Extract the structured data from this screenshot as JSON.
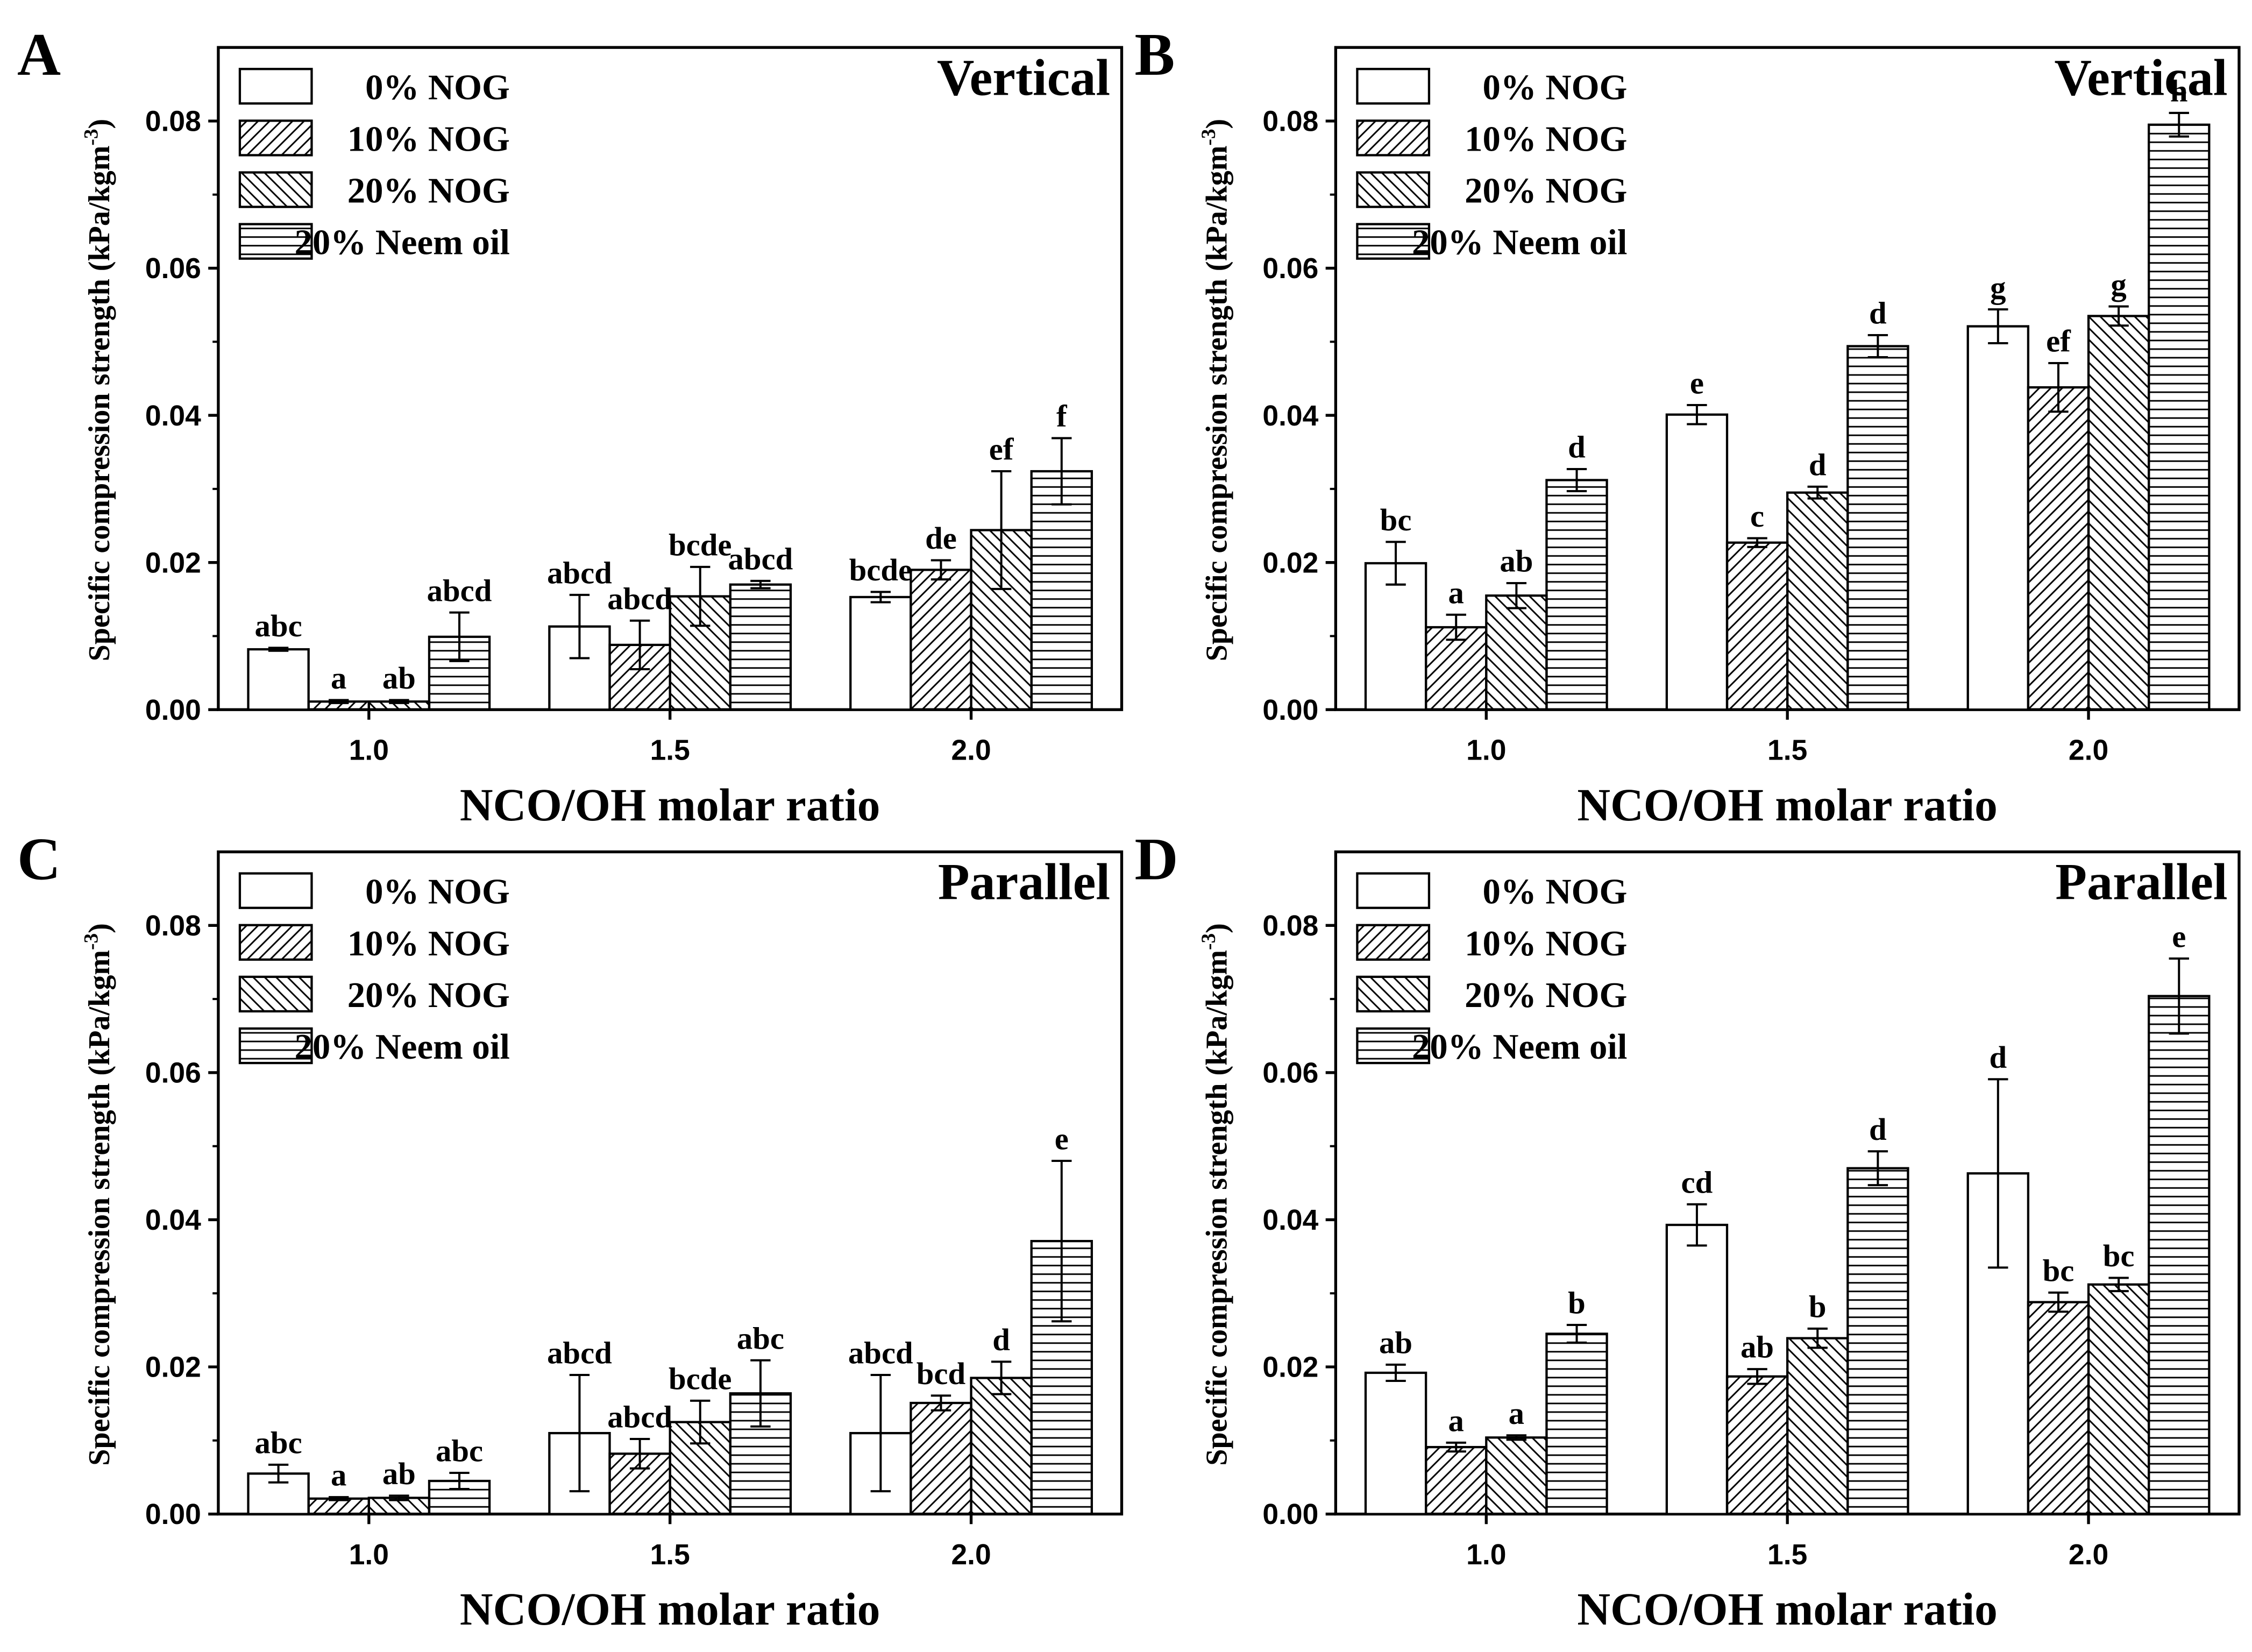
{
  "chart_data": [
    {
      "panel": "A",
      "type": "bar",
      "title": "Vertical",
      "xlabel": "NCO/OH molar ratio",
      "ylabel": "Specific compression strength (kPa/kgm",
      "ylabel_exp": "-3",
      "ylabel_close": ")",
      "ylim": [
        0,
        0.09
      ],
      "yticks": [
        "0.00",
        "0.02",
        "0.04",
        "0.06",
        "0.08"
      ],
      "categories": [
        "1.0",
        "1.5",
        "2.0"
      ],
      "series": [
        {
          "name": "0% NOG",
          "pattern": "empty",
          "values": [
            0.0082,
            0.0113,
            0.0153
          ],
          "errors": [
            0.0002,
            0.0043,
            0.0007
          ],
          "labels": [
            "abc",
            "abcd",
            "bcde"
          ]
        },
        {
          "name": "10% NOG",
          "pattern": "fdiag",
          "values": [
            0.0011,
            0.0088,
            0.019
          ],
          "errors": [
            0.0002,
            0.0033,
            0.0013
          ],
          "labels": [
            "a",
            "abcd",
            "de"
          ]
        },
        {
          "name": "20% NOG",
          "pattern": "bdiag",
          "values": [
            0.0011,
            0.0154,
            0.0244
          ],
          "errors": [
            0.0002,
            0.004,
            0.008
          ],
          "labels": [
            "ab",
            "bcde",
            "ef"
          ]
        },
        {
          "name": "20% Neem oil",
          "pattern": "hlines",
          "values": [
            0.0099,
            0.017,
            0.0324
          ],
          "errors": [
            0.0033,
            0.0005,
            0.0045
          ],
          "labels": [
            "abcd",
            "abcd",
            "f"
          ]
        }
      ]
    },
    {
      "panel": "B",
      "type": "bar",
      "title": "Vertical",
      "xlabel": "NCO/OH molar ratio",
      "ylabel": "Specific compression strength (kPa/kgm",
      "ylabel_exp": "-3",
      "ylabel_close": ")",
      "ylim": [
        0,
        0.09
      ],
      "yticks": [
        "0.00",
        "0.02",
        "0.04",
        "0.06",
        "0.08"
      ],
      "categories": [
        "1.0",
        "1.5",
        "2.0"
      ],
      "series": [
        {
          "name": "0% NOG",
          "pattern": "empty",
          "values": [
            0.0199,
            0.0401,
            0.0521
          ],
          "errors": [
            0.0029,
            0.0013,
            0.0023
          ],
          "labels": [
            "bc",
            "e",
            "g"
          ]
        },
        {
          "name": "10% NOG",
          "pattern": "fdiag",
          "values": [
            0.0112,
            0.0227,
            0.0438
          ],
          "errors": [
            0.0017,
            0.0006,
            0.0033
          ],
          "labels": [
            "a",
            "c",
            "ef"
          ]
        },
        {
          "name": "20% NOG",
          "pattern": "bdiag",
          "values": [
            0.0155,
            0.0295,
            0.0535
          ],
          "errors": [
            0.0017,
            0.0008,
            0.0013
          ],
          "labels": [
            "ab",
            "d",
            "g"
          ]
        },
        {
          "name": "20% Neem oil",
          "pattern": "hlines",
          "values": [
            0.0312,
            0.0494,
            0.0795
          ],
          "errors": [
            0.0015,
            0.0015,
            0.0016
          ],
          "labels": [
            "d",
            "d",
            "h"
          ]
        }
      ]
    },
    {
      "panel": "C",
      "type": "bar",
      "title": "Parallel",
      "xlabel": "NCO/OH molar ratio",
      "ylabel": "Specific compression strength (kPa/kgm",
      "ylabel_exp": "-3",
      "ylabel_close": ")",
      "ylim": [
        0,
        0.09
      ],
      "yticks": [
        "0.00",
        "0.02",
        "0.04",
        "0.06",
        "0.08"
      ],
      "categories": [
        "1.0",
        "1.5",
        "2.0"
      ],
      "series": [
        {
          "name": "0% NOG",
          "pattern": "empty",
          "values": [
            0.0055,
            0.011,
            0.011
          ],
          "errors": [
            0.0012,
            0.0079,
            0.0079
          ],
          "labels": [
            "abc",
            "abcd",
            "abcd"
          ]
        },
        {
          "name": "10% NOG",
          "pattern": "fdiag",
          "values": [
            0.0021,
            0.0082,
            0.0151
          ],
          "errors": [
            0.0002,
            0.002,
            0.001
          ],
          "labels": [
            "a",
            "abcd",
            "bcd"
          ]
        },
        {
          "name": "20% NOG",
          "pattern": "bdiag",
          "values": [
            0.0022,
            0.0125,
            0.0185
          ],
          "errors": [
            0.0003,
            0.0029,
            0.0022
          ],
          "labels": [
            "ab",
            "bcde",
            "d"
          ]
        },
        {
          "name": "20% Neem oil",
          "pattern": "hlines",
          "values": [
            0.0045,
            0.0164,
            0.0371
          ],
          "errors": [
            0.0011,
            0.0045,
            0.0109
          ],
          "labels": [
            "abc",
            "abc",
            "e"
          ]
        }
      ]
    },
    {
      "panel": "D",
      "type": "bar",
      "title": "Parallel",
      "xlabel": "NCO/OH molar ratio",
      "ylabel": "Specific compression strength (kPa/kgm",
      "ylabel_exp": "-3",
      "ylabel_close": ")",
      "ylim": [
        0,
        0.09
      ],
      "yticks": [
        "0.00",
        "0.02",
        "0.04",
        "0.06",
        "0.08"
      ],
      "categories": [
        "1.0",
        "1.5",
        "2.0"
      ],
      "series": [
        {
          "name": "0% NOG",
          "pattern": "empty",
          "values": [
            0.0192,
            0.0393,
            0.0463
          ],
          "errors": [
            0.0011,
            0.0028,
            0.0128
          ],
          "labels": [
            "ab",
            "cd",
            "d"
          ]
        },
        {
          "name": "10% NOG",
          "pattern": "fdiag",
          "values": [
            0.0091,
            0.0187,
            0.0288
          ],
          "errors": [
            0.0006,
            0.001,
            0.0013
          ],
          "labels": [
            "a",
            "ab",
            "bc"
          ]
        },
        {
          "name": "20% NOG",
          "pattern": "bdiag",
          "values": [
            0.0104,
            0.0239,
            0.0312
          ],
          "errors": [
            0.0003,
            0.0013,
            0.0009
          ],
          "labels": [
            "a",
            "b",
            "bc"
          ]
        },
        {
          "name": "20% Neem oil",
          "pattern": "hlines",
          "values": [
            0.0245,
            0.047,
            0.0704
          ],
          "errors": [
            0.0012,
            0.0023,
            0.0051
          ],
          "labels": [
            "b",
            "d",
            "e"
          ]
        }
      ]
    }
  ]
}
